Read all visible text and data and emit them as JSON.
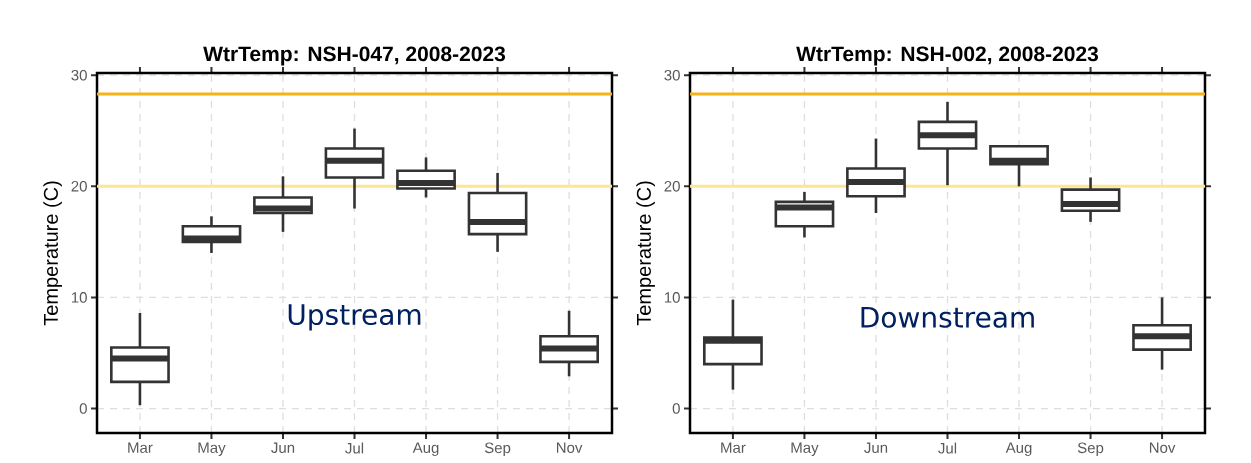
{
  "chart_data": [
    {
      "type": "box",
      "title": "WtrTemp: NSH-047, 2008-2023",
      "ylabel": "Temperature (C)",
      "annotations": [
        "Upstream"
      ],
      "categories": [
        "Mar",
        "May",
        "Jun",
        "Jul",
        "Aug",
        "Sep",
        "Nov"
      ],
      "series": [
        {
          "color": "#333333",
          "boxes": [
            {
              "low": 0.3,
              "q1": 2.4,
              "median": 4.5,
              "q3": 5.5,
              "high": 8.6
            },
            {
              "low": 14.0,
              "q1": 15.0,
              "median": 15.3,
              "q3": 16.4,
              "high": 17.3
            },
            {
              "low": 15.9,
              "q1": 17.6,
              "median": 18.0,
              "q3": 19.0,
              "high": 20.9
            },
            {
              "low": 18.0,
              "q1": 20.8,
              "median": 22.3,
              "q3": 23.4,
              "high": 25.2
            },
            {
              "low": 19.0,
              "q1": 19.8,
              "median": 20.3,
              "q3": 21.4,
              "high": 22.6
            },
            {
              "low": 14.1,
              "q1": 15.7,
              "median": 16.8,
              "q3": 19.4,
              "high": 21.2
            },
            {
              "low": 2.9,
              "q1": 4.2,
              "median": 5.4,
              "q3": 6.5,
              "high": 8.8
            }
          ]
        }
      ],
      "ylim": [
        -2.2,
        30.2
      ],
      "yticks": [
        0,
        10,
        20,
        30
      ],
      "grid": true,
      "ref_lines": [
        {
          "axis": "y",
          "value": 28.3,
          "color": "#f5b21b"
        },
        {
          "axis": "y",
          "value": 20,
          "color": "#fce68f"
        }
      ]
    },
    {
      "type": "box",
      "title": "WtrTemp: NSH-002, 2008-2023",
      "ylabel": "Temperature (C)",
      "annotations": [
        "Downstream"
      ],
      "categories": [
        "Mar",
        "May",
        "Jun",
        "Jul",
        "Aug",
        "Sep",
        "Nov"
      ],
      "series": [
        {
          "color": "#333333",
          "boxes": [
            {
              "low": 1.7,
              "q1": 4.0,
              "median": 6.1,
              "q3": 6.4,
              "high": 9.8
            },
            {
              "low": 15.4,
              "q1": 16.4,
              "median": 18.1,
              "q3": 18.6,
              "high": 19.5
            },
            {
              "low": 17.6,
              "q1": 19.1,
              "median": 20.4,
              "q3": 21.6,
              "high": 24.3
            },
            {
              "low": 20.1,
              "q1": 23.4,
              "median": 24.6,
              "q3": 25.8,
              "high": 27.6
            },
            {
              "low": 20.0,
              "q1": 22.0,
              "median": 22.3,
              "q3": 23.6,
              "high": 23.7
            },
            {
              "low": 16.8,
              "q1": 17.8,
              "median": 18.4,
              "q3": 19.7,
              "high": 20.8
            },
            {
              "low": 3.5,
              "q1": 5.3,
              "median": 6.5,
              "q3": 7.5,
              "high": 10.0
            }
          ]
        }
      ],
      "ylim": [
        -2.2,
        30.2
      ],
      "yticks": [
        0,
        10,
        20,
        30
      ],
      "grid": true,
      "ref_lines": [
        {
          "axis": "y",
          "value": 28.3,
          "color": "#f5b21b"
        },
        {
          "axis": "y",
          "value": 20,
          "color": "#fce68f"
        }
      ]
    }
  ]
}
